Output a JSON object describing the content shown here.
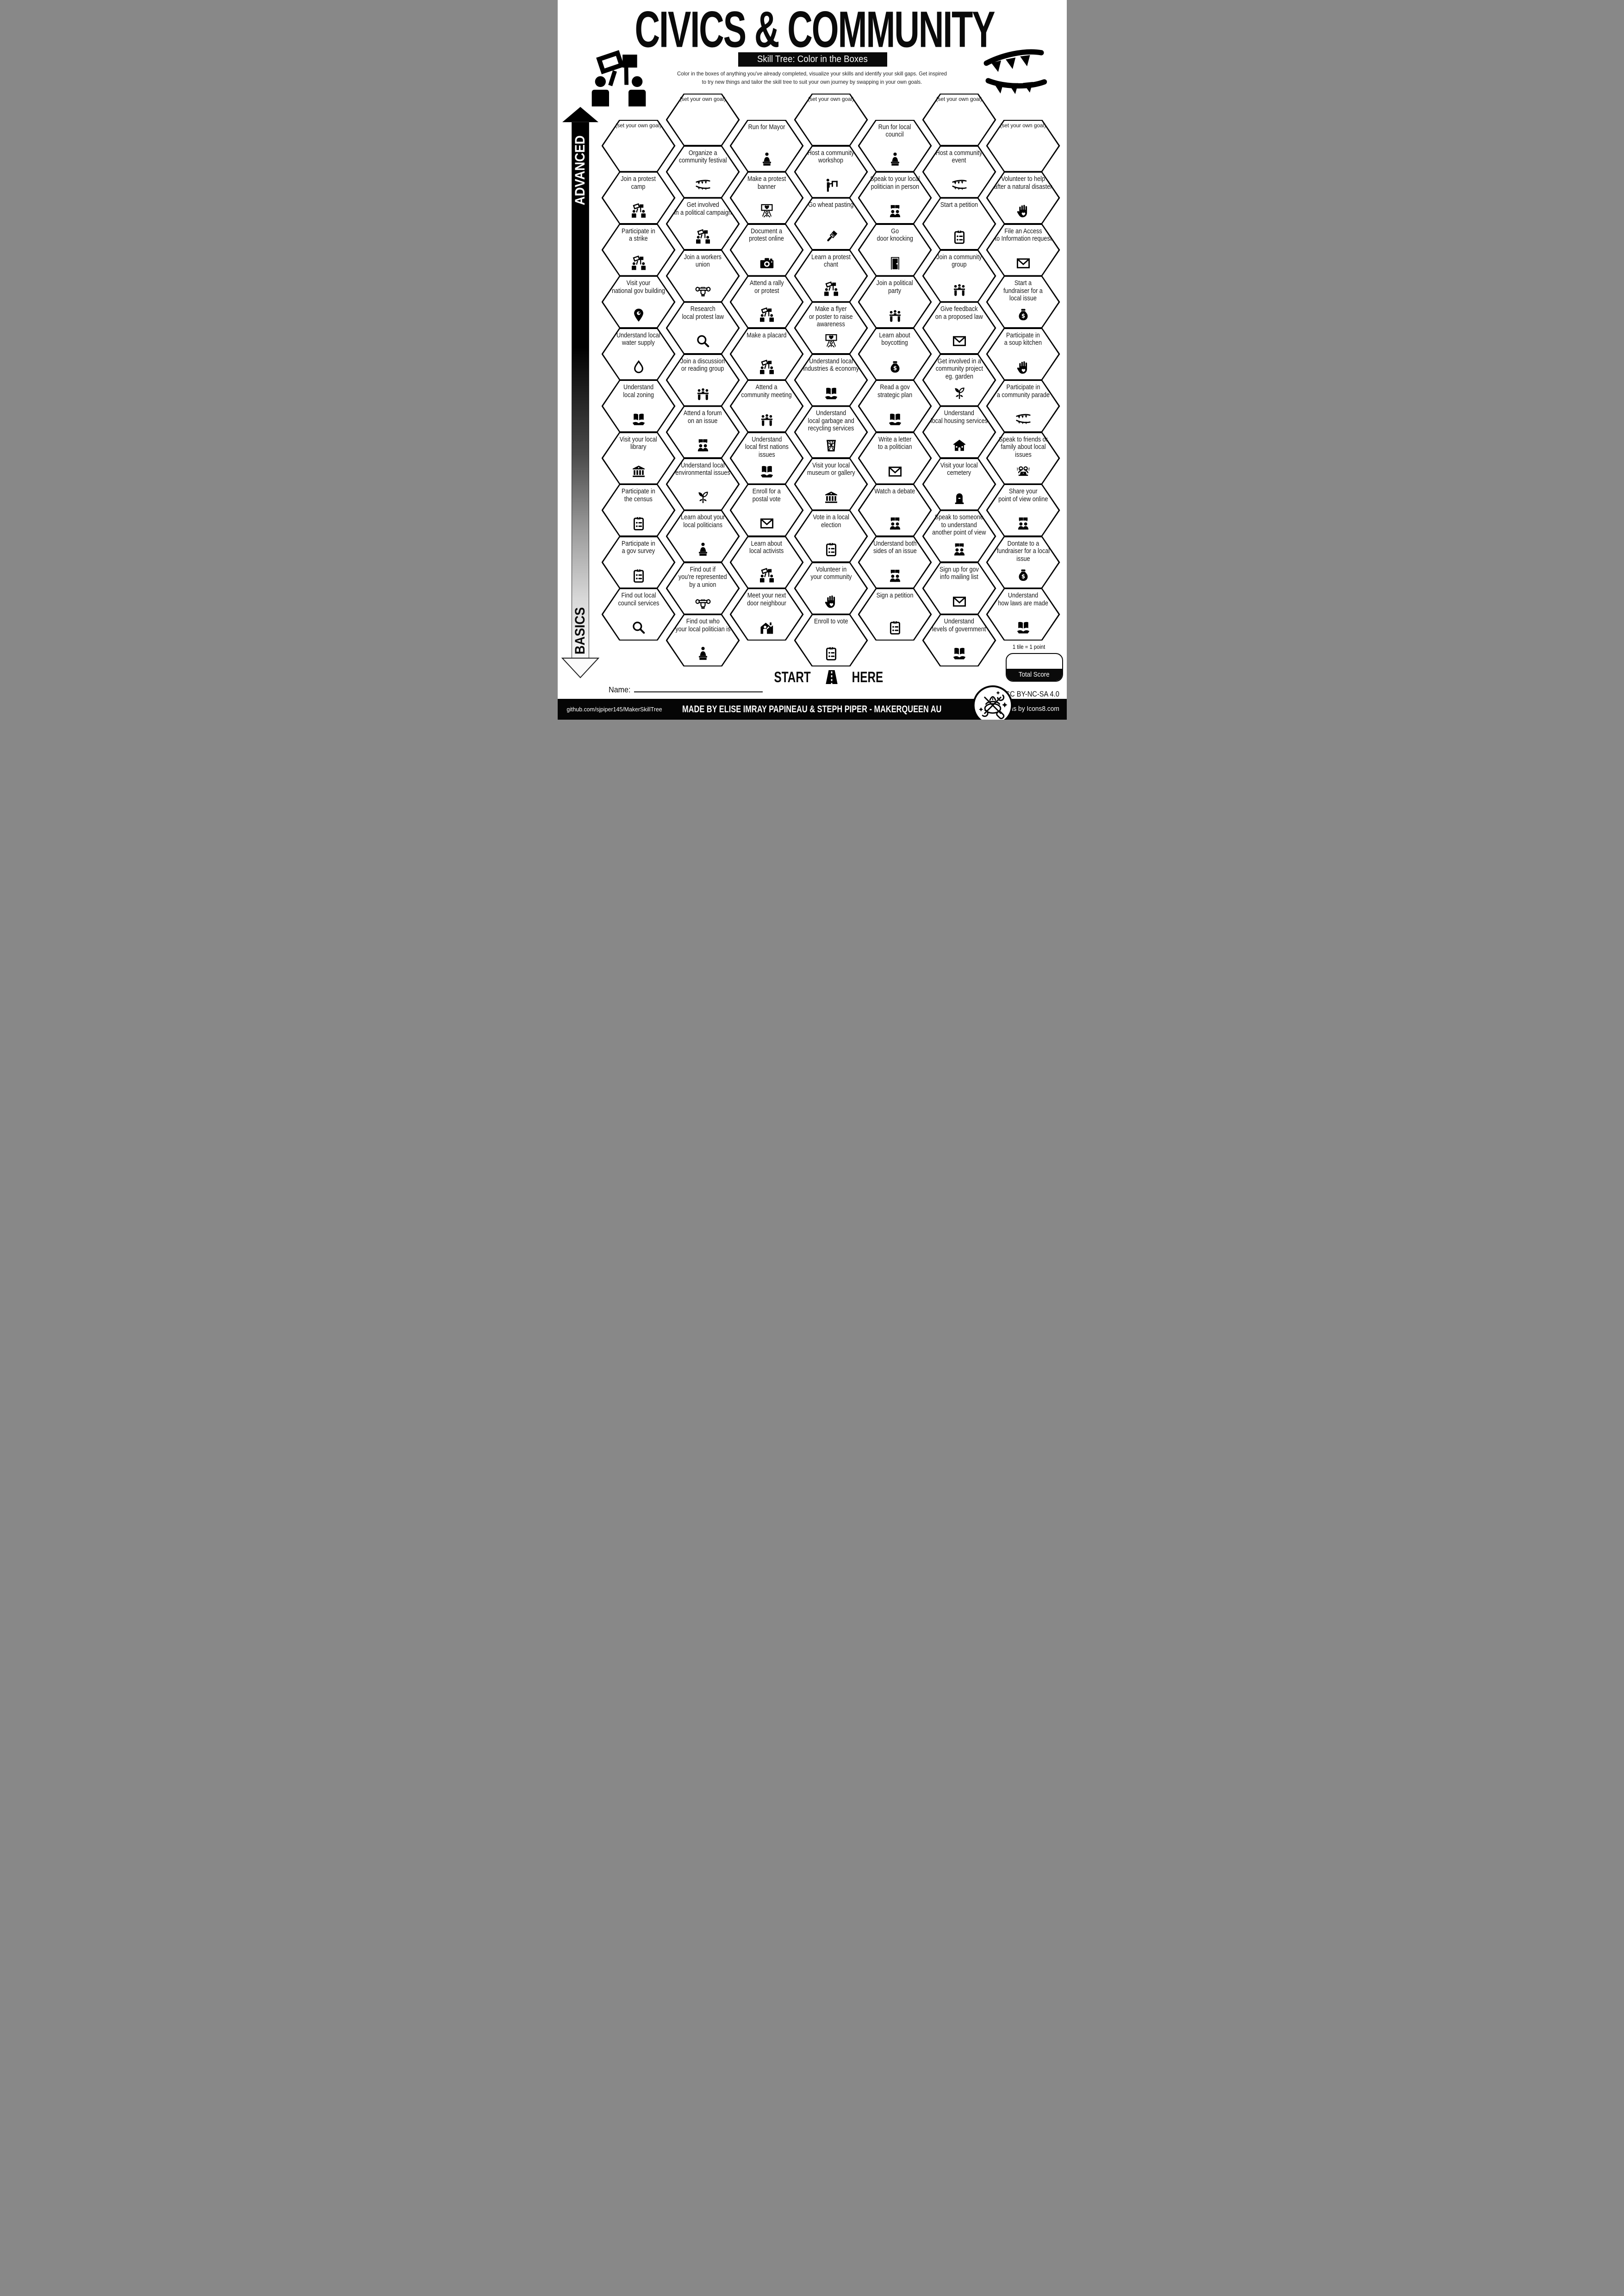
{
  "header": {
    "title": "CIVICS & COMMUNITY",
    "subtitle": "Skill Tree: Color in the Boxes",
    "description": "Color in the boxes of anything you've already completed, visualize your skills and identify your skill gaps.  Get inspired\nto try new things and tailor the skill tree to suit your own journey by swapping in your own goals."
  },
  "decorations": {
    "left": "protest-icon",
    "right": "bunting-icon"
  },
  "axis": {
    "top_label": "ADVANCED",
    "bottom_label": "BASICS"
  },
  "start": {
    "start_label": "START",
    "here_label": "HERE",
    "icon": "road-icon"
  },
  "name_field": {
    "label": "Name:",
    "value": ""
  },
  "score": {
    "tile_note": "1 tile = 1 point",
    "total_label": "Total Score",
    "value": ""
  },
  "license": {
    "text": "CC BY-NC-SA 4.0",
    "icon": "maker-logo-icon"
  },
  "footer": {
    "left": "github.com/sjpiper145/MakerSkillTree",
    "center": "MADE BY ELISE IMRAY PAPINEAU & STEPH PIPER  -  MAKERQUEEN AU",
    "right": "Icons by Icons8.com"
  },
  "colors": {
    "ink": "#000000",
    "paper": "#ffffff"
  },
  "tiles": [
    {
      "col": 0,
      "row": 0,
      "label": "(set your own goal)",
      "icon": null,
      "goal": true
    },
    {
      "col": 0,
      "row": 1,
      "label": "Join a protest\ncamp",
      "icon": "protest-icon"
    },
    {
      "col": 0,
      "row": 2,
      "label": "Participate in\na strike",
      "icon": "protest-icon"
    },
    {
      "col": 0,
      "row": 3,
      "label": "Visit your\nnational gov building",
      "icon": "pin-icon"
    },
    {
      "col": 0,
      "row": 4,
      "label": "Understand local\nwater supply",
      "icon": "water-drop-icon"
    },
    {
      "col": 0,
      "row": 5,
      "label": "Understand\nlocal zoning",
      "icon": "book-hand-icon"
    },
    {
      "col": 0,
      "row": 6,
      "label": "Visit your local\nlibrary",
      "icon": "museum-icon"
    },
    {
      "col": 0,
      "row": 7,
      "label": "Participate in\nthe census",
      "icon": "clipboard-icon"
    },
    {
      "col": 0,
      "row": 8,
      "label": "Participate in\na gov survey",
      "icon": "clipboard-icon"
    },
    {
      "col": 0,
      "row": 9,
      "label": "Find out local\ncouncil services",
      "icon": "magnifier-icon"
    },
    {
      "col": 1,
      "row": 0,
      "label": "(set your own goal)",
      "icon": null,
      "goal": true
    },
    {
      "col": 1,
      "row": 1,
      "label": "Organize a\ncommunity festival",
      "icon": "bunting-icon"
    },
    {
      "col": 1,
      "row": 2,
      "label": "Get involved\nin a political campaign",
      "icon": "protest-icon"
    },
    {
      "col": 1,
      "row": 3,
      "label": "Join a workers\nunion",
      "icon": "fist-wrench-icon"
    },
    {
      "col": 1,
      "row": 4,
      "label": "Research\nlocal protest law",
      "icon": "magnifier-icon"
    },
    {
      "col": 1,
      "row": 5,
      "label": "Join a discussion\nor reading group",
      "icon": "people-table-icon"
    },
    {
      "col": 1,
      "row": 6,
      "label": "Attend a forum\non an issue",
      "icon": "people-speech-icon"
    },
    {
      "col": 1,
      "row": 7,
      "label": "Understand local\nenvironmental issues",
      "icon": "plant-icon"
    },
    {
      "col": 1,
      "row": 8,
      "label": "Learn about your\nlocal politicians",
      "icon": "politician-icon"
    },
    {
      "col": 1,
      "row": 9,
      "label": "Find out if\nyou're represented\nby a union",
      "icon": "fist-wrench-icon"
    },
    {
      "col": 1,
      "row": 10,
      "label": "Find out who\nyour local politician is",
      "icon": "politician-icon"
    },
    {
      "col": 2,
      "row": 0,
      "label": "Run for Mayor",
      "icon": "politician-icon"
    },
    {
      "col": 2,
      "row": 1,
      "label": "Make a protest\nbanner",
      "icon": "banner-heart-icon"
    },
    {
      "col": 2,
      "row": 2,
      "label": "Document a\nprotest online",
      "icon": "camera-icon"
    },
    {
      "col": 2,
      "row": 3,
      "label": "Attend a rally\nor protest",
      "icon": "protest-icon"
    },
    {
      "col": 2,
      "row": 4,
      "label": "Make a placard",
      "icon": "protest-icon"
    },
    {
      "col": 2,
      "row": 5,
      "label": "Attend a\ncommunity meeting",
      "icon": "people-table-icon"
    },
    {
      "col": 2,
      "row": 6,
      "label": "Understand\nlocal first nations\nissues",
      "icon": "book-hand-icon"
    },
    {
      "col": 2,
      "row": 7,
      "label": "Enroll for a\npostal vote",
      "icon": "envelope-icon"
    },
    {
      "col": 2,
      "row": 8,
      "label": "Learn about\nlocal activists",
      "icon": "protest-icon"
    },
    {
      "col": 2,
      "row": 9,
      "label": "Meet your next\ndoor neighbour",
      "icon": "house-person-icon"
    },
    {
      "col": 3,
      "row": 0,
      "label": "(set your own goal)",
      "icon": null,
      "goal": true
    },
    {
      "col": 3,
      "row": 1,
      "label": "Host a community\nworkshop",
      "icon": "presenter-icon"
    },
    {
      "col": 3,
      "row": 2,
      "label": "Go wheat pasting",
      "icon": "brush-icon"
    },
    {
      "col": 3,
      "row": 3,
      "label": "Learn a protest\nchant",
      "icon": "protest-icon"
    },
    {
      "col": 3,
      "row": 4,
      "label": "Make a flyer\nor poster to raise\nawareness",
      "icon": "banner-heart-icon"
    },
    {
      "col": 3,
      "row": 5,
      "label": "Understand local\nindustries & economy",
      "icon": "book-hand-icon"
    },
    {
      "col": 3,
      "row": 6,
      "label": "Understand\nlocal garbage and\nrecycling services",
      "icon": "trash-icon"
    },
    {
      "col": 3,
      "row": 7,
      "label": "Visit your local\nmuseum or gallery",
      "icon": "museum-icon"
    },
    {
      "col": 3,
      "row": 8,
      "label": "Vote in a local\nelection",
      "icon": "clipboard-icon"
    },
    {
      "col": 3,
      "row": 9,
      "label": "Volunteer in\nyour community",
      "icon": "hand-heart-icon"
    },
    {
      "col": 3,
      "row": 10,
      "label": "Enroll to vote",
      "icon": "clipboard-icon"
    },
    {
      "col": 4,
      "row": 0,
      "label": "Run for local\ncouncil",
      "icon": "politician-icon"
    },
    {
      "col": 4,
      "row": 1,
      "label": "Speak to your local\npolitician in person",
      "icon": "people-speech-icon"
    },
    {
      "col": 4,
      "row": 2,
      "label": "Go\ndoor knocking",
      "icon": "door-icon"
    },
    {
      "col": 4,
      "row": 3,
      "label": "Join a political\nparty",
      "icon": "people-table-icon"
    },
    {
      "col": 4,
      "row": 4,
      "label": "Learn about\nboycotting",
      "icon": "moneybag-icon"
    },
    {
      "col": 4,
      "row": 5,
      "label": "Read a gov\nstrategic plan",
      "icon": "book-hand-icon"
    },
    {
      "col": 4,
      "row": 6,
      "label": "Write a letter\nto a politician",
      "icon": "envelope-icon"
    },
    {
      "col": 4,
      "row": 7,
      "label": "Watch a debate",
      "icon": "people-speech-icon"
    },
    {
      "col": 4,
      "row": 8,
      "label": "Understand both\nsides of an issue",
      "icon": "people-speech-icon"
    },
    {
      "col": 4,
      "row": 9,
      "label": "Sign a petition",
      "icon": "clipboard-icon"
    },
    {
      "col": 5,
      "row": 0,
      "label": "(set your own goal)",
      "icon": null,
      "goal": true
    },
    {
      "col": 5,
      "row": 1,
      "label": "Host a community\nevent",
      "icon": "bunting-icon"
    },
    {
      "col": 5,
      "row": 2,
      "label": "Start a petition",
      "icon": "clipboard-icon"
    },
    {
      "col": 5,
      "row": 3,
      "label": "Join a community\ngroup",
      "icon": "people-table-icon"
    },
    {
      "col": 5,
      "row": 4,
      "label": "Give feedback\non a proposed law",
      "icon": "envelope-icon"
    },
    {
      "col": 5,
      "row": 5,
      "label": "Get involved in a\ncommunity project\neg. garden",
      "icon": "plant-icon"
    },
    {
      "col": 5,
      "row": 6,
      "label": "Understand\nlocal housing services",
      "icon": "house-icon"
    },
    {
      "col": 5,
      "row": 7,
      "label": "Visit your local\ncemetery",
      "icon": "tombstone-icon"
    },
    {
      "col": 5,
      "row": 8,
      "label": "Speak to someone\nto understand\nanother point of view",
      "icon": "people-speech-icon"
    },
    {
      "col": 5,
      "row": 9,
      "label": "Sign up for gov\ninfo mailing list",
      "icon": "envelope-icon"
    },
    {
      "col": 5,
      "row": 10,
      "label": "Understand\nlevels of government",
      "icon": "book-hand-icon"
    },
    {
      "col": 6,
      "row": 0,
      "label": "(set your own goal)",
      "icon": null,
      "goal": true
    },
    {
      "col": 6,
      "row": 1,
      "label": "Volunteer to help\nafter a natural disaster",
      "icon": "hand-heart-icon"
    },
    {
      "col": 6,
      "row": 2,
      "label": "File an Access\nto Information request",
      "icon": "envelope-icon"
    },
    {
      "col": 6,
      "row": 3,
      "label": "Start a\nfundraiser for a\nlocal issue",
      "icon": "moneybag-icon"
    },
    {
      "col": 6,
      "row": 4,
      "label": "Participate in\na soup kitchen",
      "icon": "hand-heart-icon"
    },
    {
      "col": 6,
      "row": 5,
      "label": "Participate in\na community parade",
      "icon": "bunting-icon"
    },
    {
      "col": 6,
      "row": 6,
      "label": "Speak to friends or\nfamily about local issues",
      "icon": "people-laptop-icon"
    },
    {
      "col": 6,
      "row": 7,
      "label": "Share your\npoint of view online",
      "icon": "people-speech-icon"
    },
    {
      "col": 6,
      "row": 8,
      "label": "Dontate to a\nfundraiser for a local\nissue",
      "icon": "moneybag-icon"
    },
    {
      "col": 6,
      "row": 9,
      "label": "Understand\nhow laws are made",
      "icon": "book-hand-icon"
    }
  ]
}
